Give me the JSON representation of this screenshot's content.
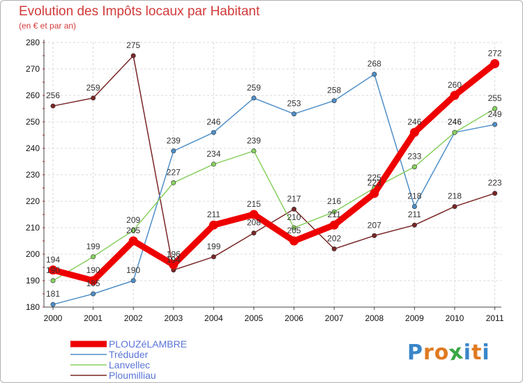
{
  "header": {
    "title": "Evolution des Impôts locaux par Habitant",
    "subtitle": "(en € et par an)"
  },
  "logo": {
    "letters": [
      "P",
      "r",
      "o",
      "x",
      "i",
      "t",
      "i"
    ],
    "colors": [
      "#3a86c8",
      "#e07a20",
      "#e07a20",
      "#3aa845",
      "#3a86c8",
      "#e07a20",
      "#3a86c8"
    ]
  },
  "chart_data": {
    "type": "line",
    "title": "Evolution des Impôts locaux par Habitant",
    "subtitle": "(en € et par an)",
    "xlabel": "",
    "ylabel": "",
    "x": [
      "2000",
      "2001",
      "2002",
      "2003",
      "2004",
      "2005",
      "2006",
      "2007",
      "2008",
      "2009",
      "2010",
      "2011"
    ],
    "ylim": [
      180,
      280
    ],
    "yticks": [
      180,
      190,
      200,
      210,
      220,
      230,
      240,
      250,
      260,
      270,
      280
    ],
    "grid": true,
    "legend_position": "bottom-left",
    "series": [
      {
        "name": "PLOUZéLAMBRE",
        "color": "#ee0000",
        "values": [
          194,
          190,
          205,
          196,
          211,
          215,
          205,
          211,
          223,
          246,
          260,
          272
        ]
      },
      {
        "name": "Tréduder",
        "color": "#4f8fc8",
        "values": [
          181,
          185,
          190,
          239,
          246,
          259,
          253,
          258,
          268,
          218,
          246,
          249
        ]
      },
      {
        "name": "Lanvellec",
        "color": "#88d060",
        "values": [
          190,
          199,
          209,
          227,
          234,
          239,
          210,
          216,
          225,
          233,
          246,
          255
        ]
      },
      {
        "name": "Ploumilliau",
        "color": "#7a2626",
        "values": [
          256,
          259,
          275,
          194,
          199,
          208,
          217,
          202,
          207,
          211,
          218,
          223
        ]
      }
    ]
  }
}
